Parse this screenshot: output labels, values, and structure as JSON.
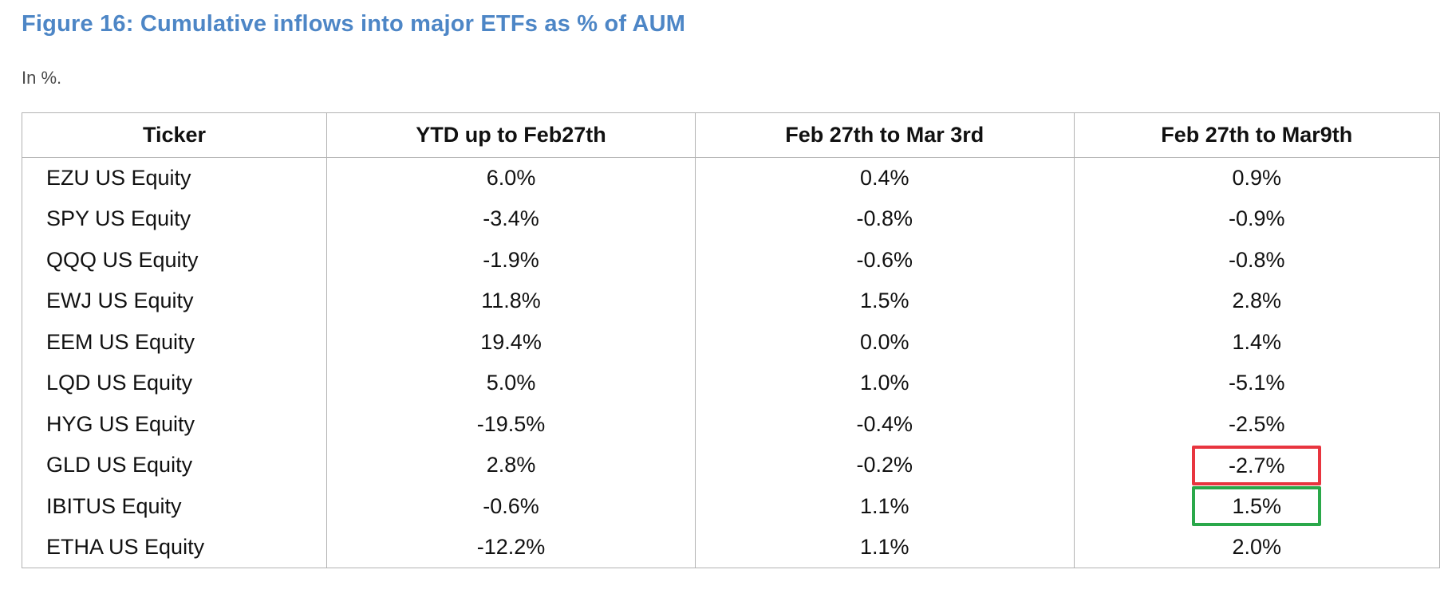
{
  "figure": {
    "title": "Figure 16: Cumulative inflows into major ETFs as % of AUM",
    "subtitle": "In %."
  },
  "colors": {
    "title_blue": "#4d86c6",
    "subtitle_gray": "#4a4a4a",
    "table_border": "#b2b2b2",
    "highlight_red": "#e8353f",
    "highlight_green": "#2aa84a"
  },
  "table": {
    "headers": [
      "Ticker",
      "YTD up to Feb27th",
      "Feb 27th to Mar 3rd",
      "Feb 27th to Mar9th"
    ],
    "rows": [
      {
        "ticker": "EZU US Equity",
        "values": [
          "6.0%",
          "0.4%",
          "0.9%"
        ],
        "highlight": null
      },
      {
        "ticker": "SPY US Equity",
        "values": [
          "-3.4%",
          "-0.8%",
          "-0.9%"
        ],
        "highlight": null
      },
      {
        "ticker": "QQQ US Equity",
        "values": [
          "-1.9%",
          "-0.6%",
          "-0.8%"
        ],
        "highlight": null
      },
      {
        "ticker": "EWJ US Equity",
        "values": [
          "11.8%",
          "1.5%",
          "2.8%"
        ],
        "highlight": null
      },
      {
        "ticker": "EEM US Equity",
        "values": [
          "19.4%",
          "0.0%",
          "1.4%"
        ],
        "highlight": null
      },
      {
        "ticker": "LQD US Equity",
        "values": [
          "5.0%",
          "1.0%",
          "-5.1%"
        ],
        "highlight": null
      },
      {
        "ticker": "HYG US Equity",
        "values": [
          "-19.5%",
          "-0.4%",
          "-2.5%"
        ],
        "highlight": null
      },
      {
        "ticker": "GLD US Equity",
        "values": [
          "2.8%",
          "-0.2%",
          "-2.7%"
        ],
        "highlight": {
          "value_index": 2,
          "color": "red"
        }
      },
      {
        "ticker": "IBITUS Equity",
        "values": [
          "-0.6%",
          "1.1%",
          "1.5%"
        ],
        "highlight": {
          "value_index": 2,
          "color": "green"
        }
      },
      {
        "ticker": "ETHA US Equity",
        "values": [
          "-12.2%",
          "1.1%",
          "2.0%"
        ],
        "highlight": null
      }
    ]
  }
}
